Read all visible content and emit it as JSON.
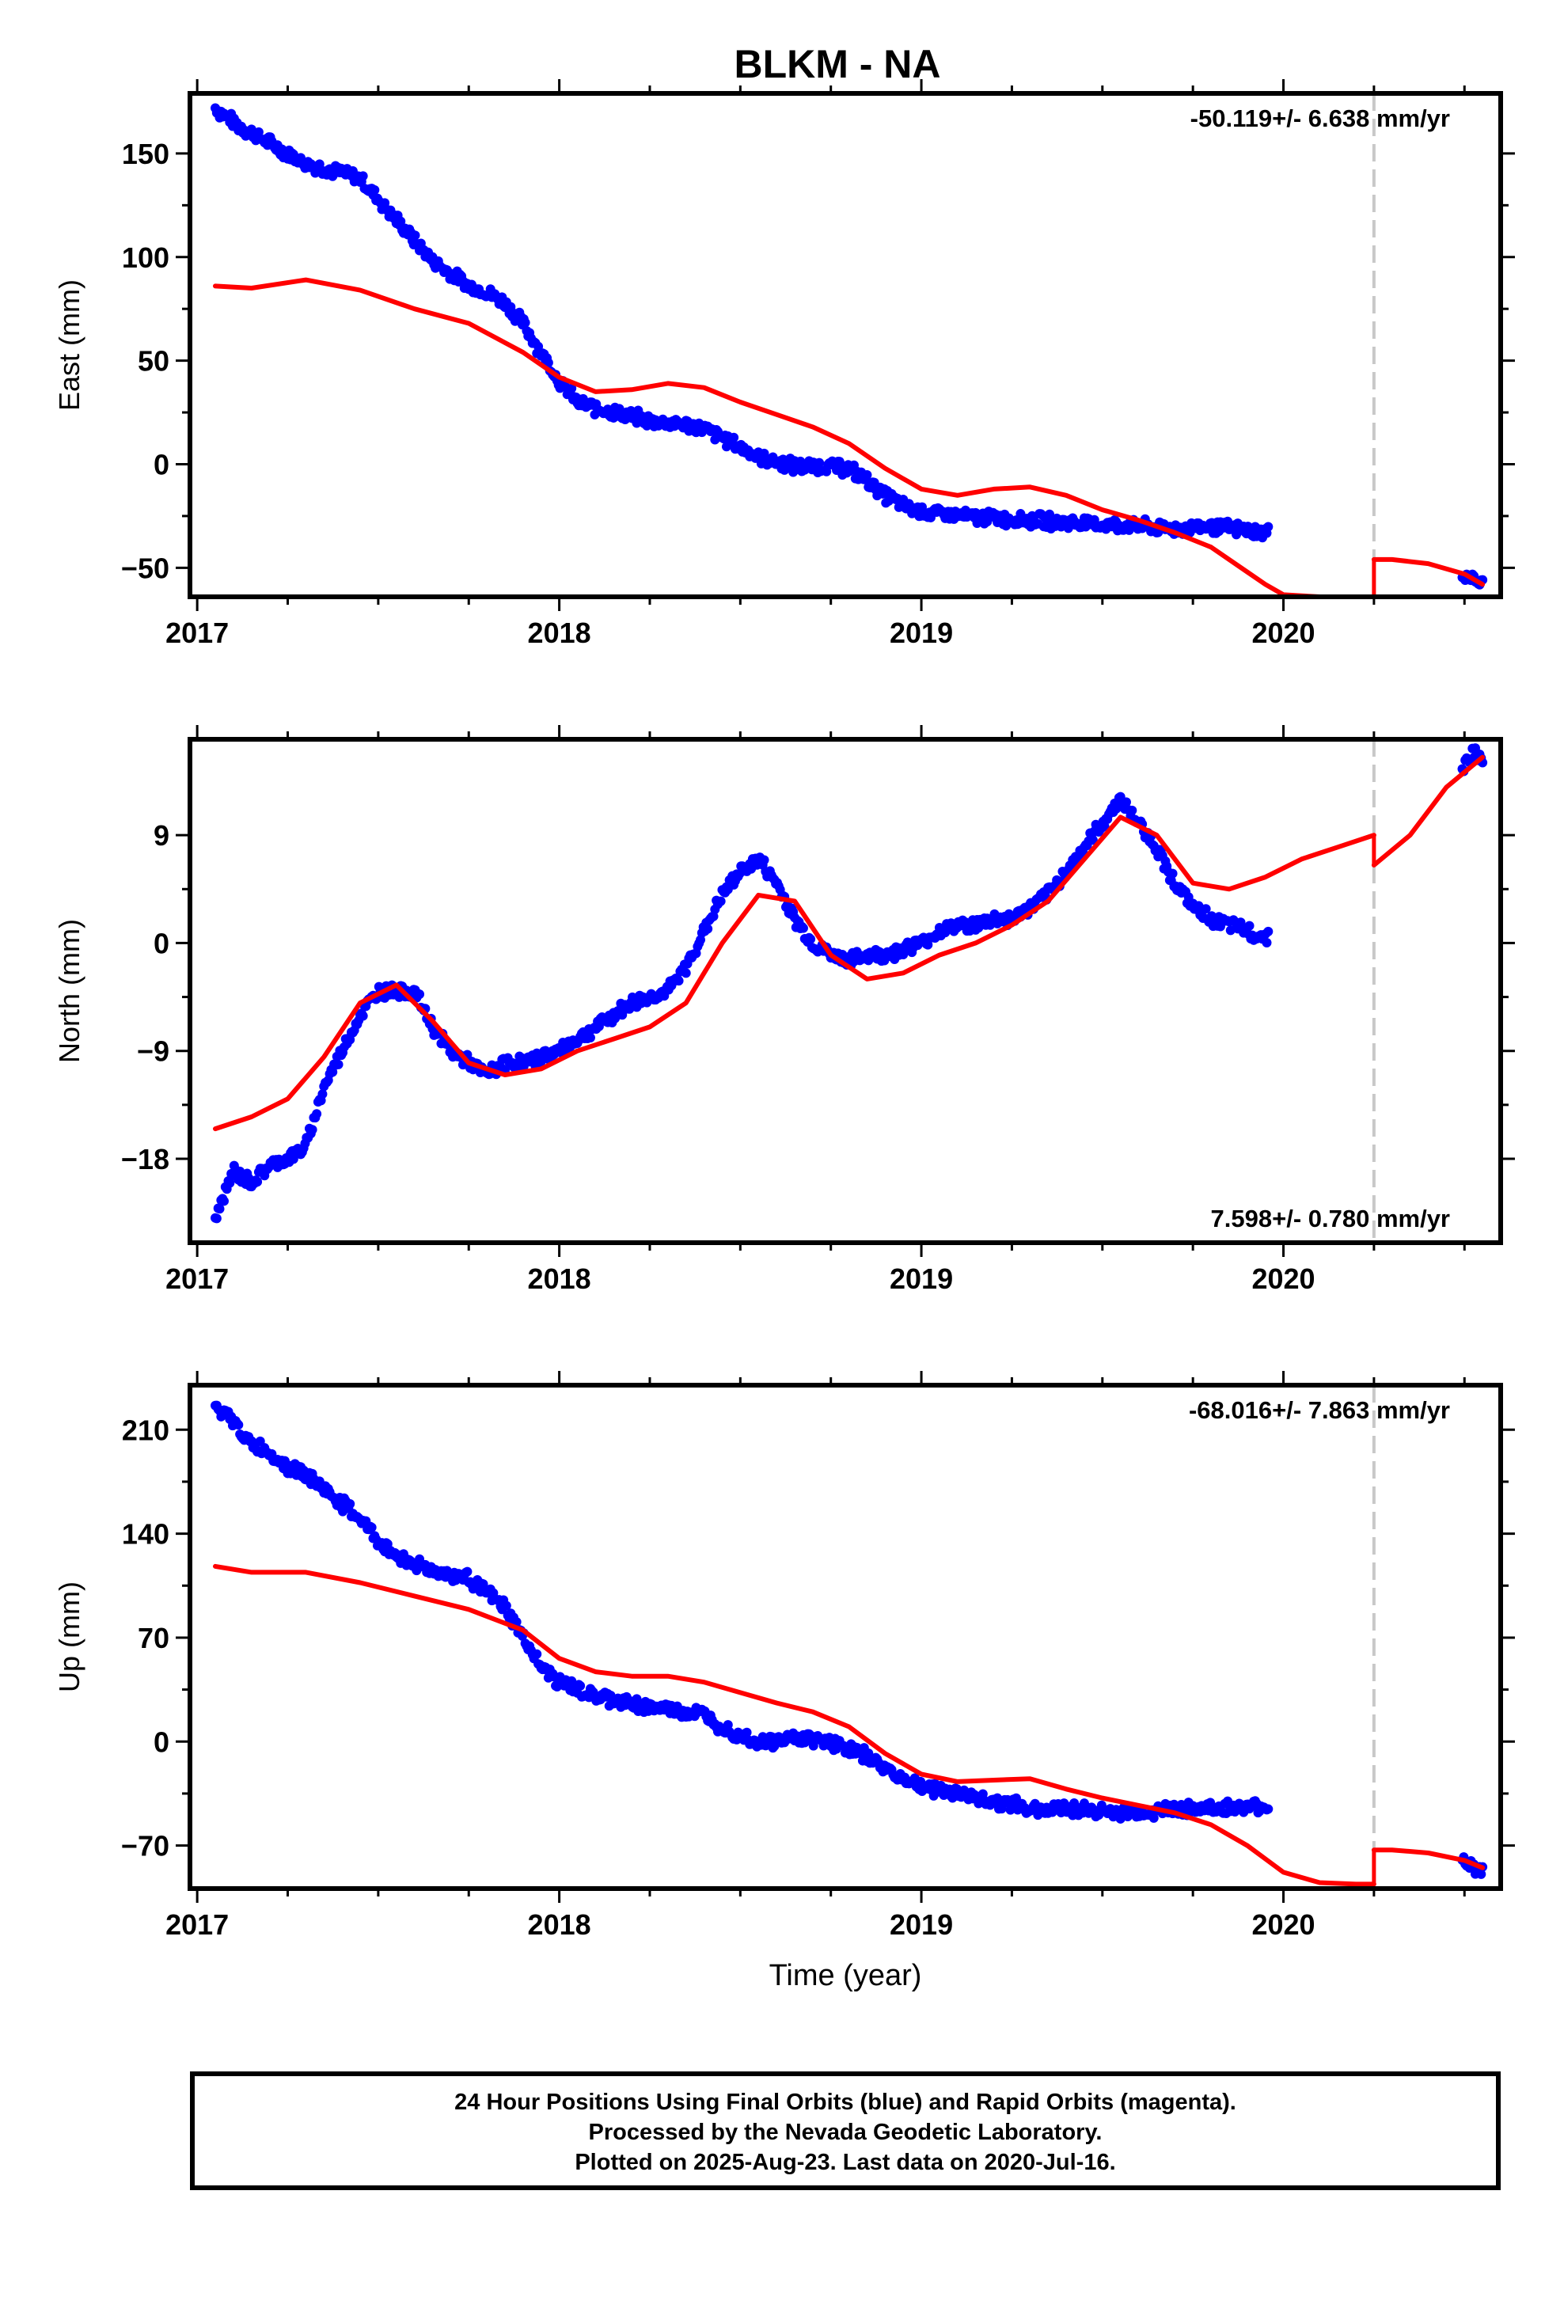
{
  "chart_data": [
    {
      "type": "scatter",
      "title": "BLKM - NA",
      "ylabel": "East (mm)",
      "xlim": [
        2016.98,
        2020.6
      ],
      "ylim": [
        -64,
        179
      ],
      "xticks": [
        2017,
        2018,
        2019,
        2020
      ],
      "yticks": [
        -50,
        0,
        50,
        100,
        150
      ],
      "rate_label": "-50.119+/- 6.638 mm/yr",
      "rate_position": "top-right",
      "break_year": 2020.25,
      "series": [
        {
          "kind": "points",
          "color": "#0000ff",
          "x": [
            2017.05,
            2017.1,
            2017.2,
            2017.25,
            2017.3,
            2017.35,
            2017.45,
            2017.5,
            2017.55,
            2017.6,
            2017.65,
            2017.7,
            2017.75,
            2017.8,
            2017.85,
            2017.9,
            2017.95,
            2018.0,
            2018.05,
            2018.1,
            2018.15,
            2018.2,
            2018.25,
            2018.3,
            2018.35,
            2018.4,
            2018.45,
            2018.5,
            2018.55,
            2018.6,
            2018.65,
            2018.7,
            2018.75,
            2018.8,
            2018.85,
            2018.9,
            2018.95,
            2019.0,
            2019.1,
            2019.2,
            2019.3,
            2019.4,
            2019.5,
            2019.6,
            2019.7,
            2019.8,
            2019.9,
            2019.95,
            2020.5,
            2020.53,
            2020.55
          ],
          "y": [
            172,
            165,
            155,
            150,
            145,
            143,
            138,
            128,
            118,
            108,
            98,
            92,
            86,
            83,
            78,
            68,
            54,
            40,
            30,
            27,
            25,
            23,
            21,
            20,
            19,
            17,
            13,
            8,
            4,
            1,
            -1,
            -1,
            -1,
            -2,
            -8,
            -15,
            -20,
            -23,
            -25,
            -26,
            -27,
            -28,
            -29,
            -30,
            -31,
            -30,
            -32,
            -33,
            -53,
            -56,
            -58
          ]
        },
        {
          "kind": "model",
          "color": "#ff0000",
          "x": [
            2017.05,
            2017.15,
            2017.3,
            2017.45,
            2017.6,
            2017.75,
            2017.9,
            2018.0,
            2018.1,
            2018.2,
            2018.3,
            2018.4,
            2018.5,
            2018.6,
            2018.7,
            2018.8,
            2018.9,
            2019.0,
            2019.1,
            2019.2,
            2019.3,
            2019.4,
            2019.5,
            2019.6,
            2019.7,
            2019.8,
            2019.9,
            2019.95,
            2020.0,
            2020.1,
            2020.2,
            2020.25
          ],
          "y": [
            86,
            85,
            89,
            84,
            75,
            68,
            54,
            42,
            35,
            36,
            39,
            37,
            30,
            24,
            18,
            10,
            -2,
            -12,
            -15,
            -12,
            -11,
            -15,
            -22,
            -27,
            -33,
            -40,
            -52,
            -58,
            -63,
            -64,
            -64,
            -64
          ]
        },
        {
          "kind": "model",
          "color": "#ff0000",
          "x": [
            2020.25,
            2020.3,
            2020.4,
            2020.5,
            2020.55
          ],
          "y": [
            -46,
            -46,
            -48,
            -53,
            -58
          ]
        }
      ]
    },
    {
      "type": "scatter",
      "title": "",
      "ylabel": "North (mm)",
      "xlim": [
        2016.98,
        2020.6
      ],
      "ylim": [
        -25,
        17
      ],
      "xticks": [
        2017,
        2018,
        2019,
        2020
      ],
      "yticks": [
        -18,
        -9,
        0,
        9
      ],
      "rate_label": "7.598+/- 0.780 mm/yr",
      "rate_position": "bottom-right",
      "break_year": 2020.25,
      "series": [
        {
          "kind": "points",
          "color": "#0000ff",
          "x": [
            2017.05,
            2017.1,
            2017.15,
            2017.2,
            2017.25,
            2017.3,
            2017.35,
            2017.4,
            2017.45,
            2017.5,
            2017.55,
            2017.6,
            2017.65,
            2017.7,
            2017.75,
            2017.8,
            2017.85,
            2017.9,
            2017.95,
            2018.0,
            2018.05,
            2018.1,
            2018.15,
            2018.2,
            2018.25,
            2018.3,
            2018.35,
            2018.4,
            2018.45,
            2018.5,
            2018.55,
            2018.6,
            2018.65,
            2018.7,
            2018.75,
            2018.8,
            2018.85,
            2018.9,
            2018.95,
            2019.0,
            2019.05,
            2019.1,
            2019.15,
            2019.2,
            2019.25,
            2019.3,
            2019.35,
            2019.4,
            2019.45,
            2019.5,
            2019.55,
            2019.6,
            2019.65,
            2019.7,
            2019.75,
            2019.8,
            2019.85,
            2019.9,
            2019.95,
            2020.5,
            2020.53,
            2020.55
          ],
          "y": [
            -23,
            -19,
            -20,
            -18.5,
            -18,
            -17,
            -12,
            -9,
            -6,
            -4,
            -4,
            -4,
            -7,
            -9,
            -10,
            -11,
            -10,
            -10,
            -9.5,
            -9,
            -8,
            -7,
            -6,
            -5,
            -4.5,
            -4,
            -2,
            1,
            4,
            6,
            7,
            5,
            2,
            0,
            -1,
            -1.5,
            -1,
            -1,
            -0.5,
            0,
            1,
            1.5,
            1.5,
            2,
            2,
            3,
            4,
            6,
            8,
            10,
            12,
            10,
            8,
            5,
            3,
            2,
            1.5,
            1,
            0.5,
            15,
            16,
            15
          ]
        },
        {
          "kind": "model",
          "color": "#ff0000",
          "x": [
            2017.05,
            2017.15,
            2017.25,
            2017.35,
            2017.45,
            2017.55,
            2017.65,
            2017.75,
            2017.85,
            2017.95,
            2018.05,
            2018.15,
            2018.25,
            2018.35,
            2018.45,
            2018.55,
            2018.65,
            2018.75,
            2018.85,
            2018.95,
            2019.05,
            2019.15,
            2019.25,
            2019.35,
            2019.45,
            2019.55,
            2019.65,
            2019.75,
            2019.85,
            2019.95,
            2020.05,
            2020.15,
            2020.25
          ],
          "y": [
            -15.5,
            -14.5,
            -13,
            -9.5,
            -5,
            -3.5,
            -6.5,
            -10,
            -11,
            -10.5,
            -9,
            -8,
            -7,
            -5,
            0,
            4,
            3.5,
            -1,
            -3,
            -2.5,
            -1,
            0,
            1.5,
            3.5,
            7,
            10.5,
            9,
            5,
            4.5,
            5.5,
            7,
            8,
            9
          ]
        },
        {
          "kind": "model",
          "color": "#ff0000",
          "x": [
            2020.25,
            2020.35,
            2020.45,
            2020.55
          ],
          "y": [
            6.5,
            9,
            13,
            15.5
          ]
        }
      ]
    },
    {
      "type": "scatter",
      "title": "",
      "ylabel": "Up (mm)",
      "xlabel": "Time (year)",
      "xlim": [
        2016.98,
        2020.6
      ],
      "ylim": [
        -99,
        240
      ],
      "xticks": [
        2017,
        2018,
        2019,
        2020
      ],
      "yticks": [
        -70,
        0,
        70,
        140,
        210
      ],
      "rate_label": "-68.016+/- 7.863 mm/yr",
      "rate_position": "top-right",
      "break_year": 2020.25,
      "series": [
        {
          "kind": "points",
          "color": "#0000ff",
          "x": [
            2017.05,
            2017.1,
            2017.15,
            2017.2,
            2017.25,
            2017.3,
            2017.35,
            2017.4,
            2017.45,
            2017.5,
            2017.55,
            2017.6,
            2017.65,
            2017.7,
            2017.75,
            2017.8,
            2017.85,
            2017.9,
            2017.95,
            2018.0,
            2018.05,
            2018.1,
            2018.15,
            2018.2,
            2018.25,
            2018.3,
            2018.35,
            2018.4,
            2018.45,
            2018.5,
            2018.55,
            2018.6,
            2018.65,
            2018.7,
            2018.75,
            2018.8,
            2018.85,
            2018.9,
            2018.95,
            2019.0,
            2019.1,
            2019.2,
            2019.3,
            2019.4,
            2019.5,
            2019.6,
            2019.7,
            2019.8,
            2019.9,
            2019.95,
            2020.5,
            2020.53,
            2020.55
          ],
          "y": [
            225,
            215,
            200,
            195,
            185,
            180,
            170,
            160,
            150,
            135,
            125,
            120,
            115,
            112,
            110,
            100,
            90,
            70,
            50,
            40,
            35,
            30,
            28,
            25,
            23,
            22,
            20,
            18,
            10,
            5,
            0,
            0,
            3,
            2,
            0,
            -5,
            -10,
            -18,
            -25,
            -30,
            -35,
            -40,
            -45,
            -45,
            -47,
            -48,
            -45,
            -45,
            -45,
            -44,
            -80,
            -85,
            -88
          ]
        },
        {
          "kind": "model",
          "color": "#ff0000",
          "x": [
            2017.05,
            2017.15,
            2017.3,
            2017.45,
            2017.6,
            2017.75,
            2017.9,
            2018.0,
            2018.1,
            2018.2,
            2018.3,
            2018.4,
            2018.5,
            2018.6,
            2018.7,
            2018.8,
            2018.9,
            2019.0,
            2019.1,
            2019.2,
            2019.3,
            2019.4,
            2019.5,
            2019.6,
            2019.7,
            2019.8,
            2019.9,
            2019.95,
            2020.0,
            2020.1,
            2020.2,
            2020.25
          ],
          "y": [
            118,
            114,
            114,
            107,
            98,
            89,
            75,
            56,
            47,
            44,
            44,
            40,
            33,
            26,
            20,
            10,
            -8,
            -22,
            -27,
            -26,
            -25,
            -32,
            -38,
            -43,
            -48,
            -56,
            -70,
            -79,
            -88,
            -95,
            -96,
            -96
          ]
        },
        {
          "kind": "model",
          "color": "#ff0000",
          "x": [
            2020.25,
            2020.3,
            2020.4,
            2020.5,
            2020.55
          ],
          "y": [
            -73,
            -73,
            -75,
            -80,
            -85
          ]
        }
      ]
    }
  ],
  "caption": {
    "line1": "24 Hour Positions Using Final Orbits (blue) and Rapid Orbits (magenta).",
    "line2": "Processed by the Nevada Geodetic Laboratory.",
    "line3": "Plotted on 2025-Aug-23. Last data on 2020-Jul-16."
  }
}
